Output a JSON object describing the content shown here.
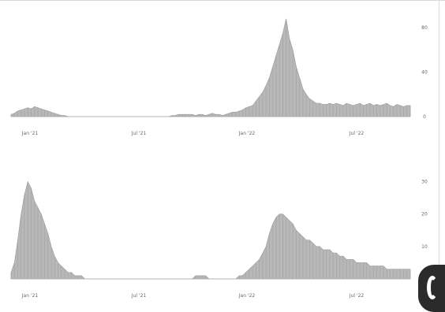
{
  "colors": {
    "area": "#b8b8b8",
    "area_stroke": "#9a9a9a",
    "axis": "#cfcfcf",
    "text": "#666666"
  },
  "chart_data": [
    {
      "type": "area",
      "title": "",
      "xlabel": "",
      "ylabel": "",
      "x_tick_labels": [
        "Jan '21",
        "Jul '21",
        "Jan '22",
        "Jul '22"
      ],
      "y_tick_labels": [
        "0",
        "40",
        "80"
      ],
      "ylim": [
        0,
        95
      ],
      "grid": false,
      "series": [
        {
          "values": [
            2,
            3,
            5,
            6,
            7,
            8,
            7,
            9,
            8,
            7,
            6,
            5,
            4,
            3,
            2,
            1,
            1,
            0,
            0,
            0,
            0,
            0,
            0,
            0,
            0,
            0,
            0,
            0,
            0,
            0,
            0,
            0,
            0,
            0,
            0,
            0,
            0,
            0,
            0,
            0,
            0,
            0,
            0,
            0,
            0,
            0,
            0,
            0,
            1,
            1,
            2,
            2,
            2,
            2,
            2,
            1,
            2,
            2,
            1,
            2,
            3,
            2,
            2,
            1,
            2,
            3,
            4,
            4,
            5,
            6,
            8,
            9,
            10,
            14,
            18,
            22,
            28,
            35,
            45,
            55,
            65,
            75,
            88,
            70,
            60,
            45,
            35,
            25,
            20,
            16,
            14,
            12,
            12,
            11,
            11,
            12,
            11,
            12,
            11,
            10,
            12,
            11,
            10,
            11,
            12,
            10,
            11,
            12,
            10,
            11,
            10,
            11,
            12,
            10,
            9,
            11,
            10,
            9,
            10,
            10
          ]
        }
      ]
    },
    {
      "type": "area",
      "title": "",
      "xlabel": "",
      "ylabel": "",
      "x_tick_labels": [
        "Jan '21",
        "Jul '21",
        "Jan '22",
        "Jul '22"
      ],
      "y_tick_labels": [
        "0",
        "10",
        "20",
        "30"
      ],
      "ylim": [
        0,
        35
      ],
      "grid": false,
      "series": [
        {
          "values": [
            2,
            5,
            12,
            20,
            26,
            30,
            28,
            24,
            22,
            20,
            17,
            14,
            10,
            7,
            5,
            4,
            3,
            2,
            2,
            1,
            1,
            1,
            0,
            0,
            0,
            0,
            0,
            0,
            0,
            0,
            0,
            0,
            0,
            0,
            0,
            0,
            0,
            0,
            0,
            0,
            0,
            0,
            0,
            0,
            0,
            0,
            0,
            0,
            0,
            0,
            0,
            0,
            0,
            0,
            0,
            1,
            1,
            1,
            1,
            0,
            0,
            0,
            0,
            0,
            0,
            0,
            0,
            0,
            1,
            1,
            2,
            3,
            4,
            5,
            6,
            8,
            10,
            14,
            17,
            19,
            20,
            20,
            19,
            18,
            17,
            15,
            14,
            13,
            12,
            12,
            11,
            10,
            10,
            9,
            9,
            9,
            8,
            8,
            7,
            7,
            6,
            6,
            6,
            5,
            5,
            5,
            5,
            4,
            4,
            4,
            4,
            4,
            3,
            3,
            3,
            3,
            3,
            3,
            3,
            3
          ]
        }
      ]
    }
  ]
}
